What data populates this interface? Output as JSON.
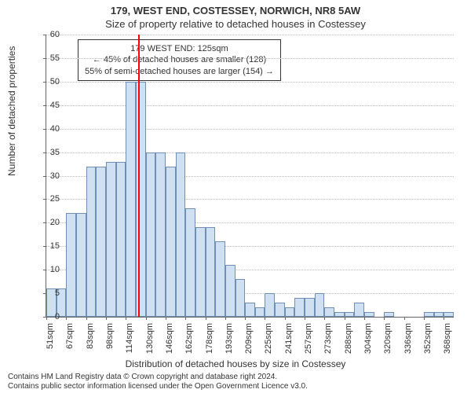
{
  "title": "179, WEST END, COSTESSEY, NORWICH, NR8 5AW",
  "subtitle": "Size of property relative to detached houses in Costessey",
  "ylabel": "Number of detached properties",
  "xlabel": "Distribution of detached houses by size in Costessey",
  "chart": {
    "type": "histogram",
    "ylim": [
      0,
      60
    ],
    "ytick_step": 5,
    "bar_fill": "#cfe0f2",
    "bar_stroke": "#6f8fb3",
    "grid_color": "#bbbbbb",
    "background": "#ffffff",
    "marker_color": "#ff0000",
    "marker_x_value": 125,
    "x_start": 51,
    "x_step": 8,
    "bars": [
      6,
      6,
      22,
      22,
      32,
      32,
      33,
      33,
      50,
      50,
      35,
      35,
      32,
      35,
      23,
      19,
      19,
      16,
      11,
      8,
      3,
      2,
      5,
      3,
      2,
      4,
      4,
      5,
      2,
      1,
      1,
      3,
      1,
      0,
      1,
      0,
      0,
      0,
      1,
      1,
      1
    ],
    "xticks": [
      "51sqm",
      "67sqm",
      "83sqm",
      "98sqm",
      "114sqm",
      "130sqm",
      "146sqm",
      "162sqm",
      "178sqm",
      "193sqm",
      "209sqm",
      "225sqm",
      "241sqm",
      "257sqm",
      "273sqm",
      "288sqm",
      "304sqm",
      "320sqm",
      "336sqm",
      "352sqm",
      "368sqm"
    ]
  },
  "annotation": {
    "line1": "179 WEST END: 125sqm",
    "line2": "← 45% of detached houses are smaller (128)",
    "line3": "55% of semi-detached houses are larger (154) →"
  },
  "attribution": {
    "line1": "Contains HM Land Registry data © Crown copyright and database right 2024.",
    "line2": "Contains public sector information licensed under the Open Government Licence v3.0."
  }
}
